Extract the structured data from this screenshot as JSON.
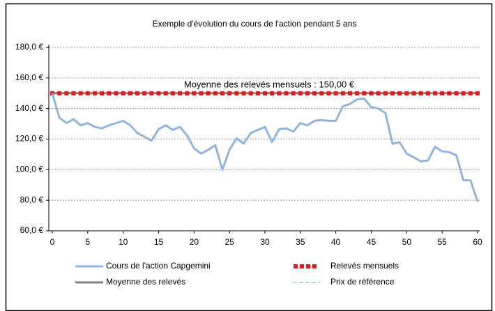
{
  "chart_data": {
    "type": "line",
    "title": "Exemple d'évolution du cours de l'action pendant 5 ans",
    "annotation": "Moyenne des relevés mensuels : 150,00 €",
    "x": [
      0,
      1,
      2,
      3,
      4,
      5,
      6,
      7,
      8,
      9,
      10,
      11,
      12,
      13,
      14,
      15,
      16,
      17,
      18,
      19,
      20,
      21,
      22,
      23,
      24,
      25,
      26,
      27,
      28,
      29,
      30,
      31,
      32,
      33,
      34,
      35,
      36,
      37,
      38,
      39,
      40,
      41,
      42,
      43,
      44,
      45,
      46,
      47,
      48,
      49,
      50,
      51,
      52,
      53,
      54,
      55,
      56,
      57,
      58,
      59,
      60
    ],
    "series": [
      {
        "name": "Cours de l'action Capgemini",
        "color": "#8fb4e3",
        "style": "line",
        "values": [
          150,
          134,
          130.5,
          133,
          129,
          130.5,
          128,
          127,
          129,
          130.5,
          132,
          129,
          124,
          121.5,
          119,
          126.5,
          129,
          126,
          128,
          122.5,
          114,
          110.5,
          113,
          116,
          100,
          113,
          120.5,
          117,
          124,
          126,
          128,
          118,
          126.5,
          127,
          125,
          130.5,
          129,
          132,
          132.5,
          132,
          132,
          141.5,
          143,
          146,
          146.5,
          141,
          140,
          137,
          117,
          118,
          110.5,
          108,
          105.5,
          106,
          115,
          112,
          111.5,
          109.5,
          93,
          93,
          79
        ]
      },
      {
        "name": "Relevés mensuels",
        "color": "#e8161b",
        "style": "markers",
        "values": [
          150,
          150,
          150,
          150,
          150,
          150,
          150,
          150,
          150,
          150,
          150,
          150,
          150,
          150,
          150,
          150,
          150,
          150,
          150,
          150,
          150,
          150,
          150,
          150,
          150,
          150,
          150,
          150,
          150,
          150,
          150,
          150,
          150,
          150,
          150,
          150,
          150,
          150,
          150,
          150,
          150,
          150,
          150,
          150,
          150,
          150,
          150,
          150,
          150,
          150,
          150,
          150,
          150,
          150,
          150,
          150,
          150,
          150,
          150,
          150,
          150
        ]
      },
      {
        "name": "Moyenne des relevés",
        "color": "#808080",
        "style": "line",
        "values": [
          150,
          150,
          150,
          150,
          150,
          150,
          150,
          150,
          150,
          150,
          150,
          150,
          150,
          150,
          150,
          150,
          150,
          150,
          150,
          150,
          150,
          150,
          150,
          150,
          150,
          150,
          150,
          150,
          150,
          150,
          150,
          150,
          150,
          150,
          150,
          150,
          150,
          150,
          150,
          150,
          150,
          150,
          150,
          150,
          150,
          150,
          150,
          150,
          150,
          150,
          150,
          150,
          150,
          150,
          150,
          150,
          150,
          150,
          150,
          150,
          150
        ]
      },
      {
        "name": "Prix de référence",
        "color": "#b4d4f0",
        "style": "dashed",
        "values": [
          150,
          150,
          150,
          150,
          150,
          150,
          150,
          150,
          150,
          150,
          150,
          150,
          150,
          150,
          150,
          150,
          150,
          150,
          150,
          150,
          150,
          150,
          150,
          150,
          150,
          150,
          150,
          150,
          150,
          150,
          150,
          150,
          150,
          150,
          150,
          150,
          150,
          150,
          150,
          150,
          150,
          150,
          150,
          150,
          150,
          150,
          150,
          150,
          150,
          150,
          150,
          150,
          150,
          150,
          150,
          150,
          150,
          150,
          150,
          150,
          150
        ]
      }
    ],
    "xlim": [
      0,
      60
    ],
    "xticks": [
      0,
      5,
      10,
      15,
      20,
      25,
      30,
      35,
      40,
      45,
      50,
      55,
      60
    ],
    "ylim": [
      60,
      180
    ],
    "yticks": [
      {
        "value": 60,
        "label": "60,0 €"
      },
      {
        "value": 80,
        "label": "80,0 €"
      },
      {
        "value": 100,
        "label": "100,0 €"
      },
      {
        "value": 120,
        "label": "120,0 €"
      },
      {
        "value": 140,
        "label": "140,0 €"
      },
      {
        "value": 160,
        "label": "160,0 €"
      },
      {
        "value": 180,
        "label": "180,0 €"
      }
    ],
    "grid": true,
    "legend": "bottom"
  }
}
